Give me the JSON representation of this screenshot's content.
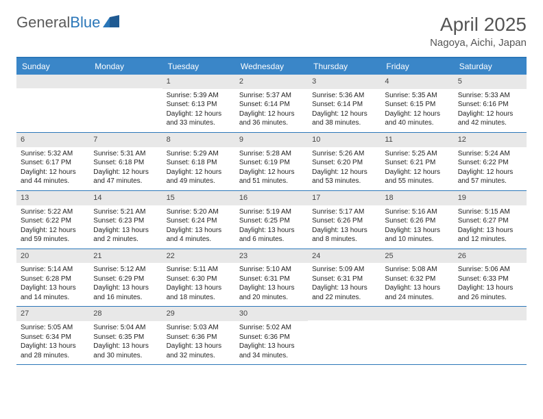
{
  "logo": {
    "text_gray": "General",
    "text_blue": "Blue"
  },
  "title": "April 2025",
  "subtitle": "Nagoya, Aichi, Japan",
  "colors": {
    "header_bar": "#3a86c8",
    "border": "#2a76b8",
    "daynum_bg": "#e8e8e8",
    "text": "#222222",
    "title_text": "#555555"
  },
  "weekdays": [
    "Sunday",
    "Monday",
    "Tuesday",
    "Wednesday",
    "Thursday",
    "Friday",
    "Saturday"
  ],
  "weeks": [
    [
      null,
      null,
      {
        "n": "1",
        "sr": "Sunrise: 5:39 AM",
        "ss": "Sunset: 6:13 PM",
        "d1": "Daylight: 12 hours",
        "d2": "and 33 minutes."
      },
      {
        "n": "2",
        "sr": "Sunrise: 5:37 AM",
        "ss": "Sunset: 6:14 PM",
        "d1": "Daylight: 12 hours",
        "d2": "and 36 minutes."
      },
      {
        "n": "3",
        "sr": "Sunrise: 5:36 AM",
        "ss": "Sunset: 6:14 PM",
        "d1": "Daylight: 12 hours",
        "d2": "and 38 minutes."
      },
      {
        "n": "4",
        "sr": "Sunrise: 5:35 AM",
        "ss": "Sunset: 6:15 PM",
        "d1": "Daylight: 12 hours",
        "d2": "and 40 minutes."
      },
      {
        "n": "5",
        "sr": "Sunrise: 5:33 AM",
        "ss": "Sunset: 6:16 PM",
        "d1": "Daylight: 12 hours",
        "d2": "and 42 minutes."
      }
    ],
    [
      {
        "n": "6",
        "sr": "Sunrise: 5:32 AM",
        "ss": "Sunset: 6:17 PM",
        "d1": "Daylight: 12 hours",
        "d2": "and 44 minutes."
      },
      {
        "n": "7",
        "sr": "Sunrise: 5:31 AM",
        "ss": "Sunset: 6:18 PM",
        "d1": "Daylight: 12 hours",
        "d2": "and 47 minutes."
      },
      {
        "n": "8",
        "sr": "Sunrise: 5:29 AM",
        "ss": "Sunset: 6:18 PM",
        "d1": "Daylight: 12 hours",
        "d2": "and 49 minutes."
      },
      {
        "n": "9",
        "sr": "Sunrise: 5:28 AM",
        "ss": "Sunset: 6:19 PM",
        "d1": "Daylight: 12 hours",
        "d2": "and 51 minutes."
      },
      {
        "n": "10",
        "sr": "Sunrise: 5:26 AM",
        "ss": "Sunset: 6:20 PM",
        "d1": "Daylight: 12 hours",
        "d2": "and 53 minutes."
      },
      {
        "n": "11",
        "sr": "Sunrise: 5:25 AM",
        "ss": "Sunset: 6:21 PM",
        "d1": "Daylight: 12 hours",
        "d2": "and 55 minutes."
      },
      {
        "n": "12",
        "sr": "Sunrise: 5:24 AM",
        "ss": "Sunset: 6:22 PM",
        "d1": "Daylight: 12 hours",
        "d2": "and 57 minutes."
      }
    ],
    [
      {
        "n": "13",
        "sr": "Sunrise: 5:22 AM",
        "ss": "Sunset: 6:22 PM",
        "d1": "Daylight: 12 hours",
        "d2": "and 59 minutes."
      },
      {
        "n": "14",
        "sr": "Sunrise: 5:21 AM",
        "ss": "Sunset: 6:23 PM",
        "d1": "Daylight: 13 hours",
        "d2": "and 2 minutes."
      },
      {
        "n": "15",
        "sr": "Sunrise: 5:20 AM",
        "ss": "Sunset: 6:24 PM",
        "d1": "Daylight: 13 hours",
        "d2": "and 4 minutes."
      },
      {
        "n": "16",
        "sr": "Sunrise: 5:19 AM",
        "ss": "Sunset: 6:25 PM",
        "d1": "Daylight: 13 hours",
        "d2": "and 6 minutes."
      },
      {
        "n": "17",
        "sr": "Sunrise: 5:17 AM",
        "ss": "Sunset: 6:26 PM",
        "d1": "Daylight: 13 hours",
        "d2": "and 8 minutes."
      },
      {
        "n": "18",
        "sr": "Sunrise: 5:16 AM",
        "ss": "Sunset: 6:26 PM",
        "d1": "Daylight: 13 hours",
        "d2": "and 10 minutes."
      },
      {
        "n": "19",
        "sr": "Sunrise: 5:15 AM",
        "ss": "Sunset: 6:27 PM",
        "d1": "Daylight: 13 hours",
        "d2": "and 12 minutes."
      }
    ],
    [
      {
        "n": "20",
        "sr": "Sunrise: 5:14 AM",
        "ss": "Sunset: 6:28 PM",
        "d1": "Daylight: 13 hours",
        "d2": "and 14 minutes."
      },
      {
        "n": "21",
        "sr": "Sunrise: 5:12 AM",
        "ss": "Sunset: 6:29 PM",
        "d1": "Daylight: 13 hours",
        "d2": "and 16 minutes."
      },
      {
        "n": "22",
        "sr": "Sunrise: 5:11 AM",
        "ss": "Sunset: 6:30 PM",
        "d1": "Daylight: 13 hours",
        "d2": "and 18 minutes."
      },
      {
        "n": "23",
        "sr": "Sunrise: 5:10 AM",
        "ss": "Sunset: 6:31 PM",
        "d1": "Daylight: 13 hours",
        "d2": "and 20 minutes."
      },
      {
        "n": "24",
        "sr": "Sunrise: 5:09 AM",
        "ss": "Sunset: 6:31 PM",
        "d1": "Daylight: 13 hours",
        "d2": "and 22 minutes."
      },
      {
        "n": "25",
        "sr": "Sunrise: 5:08 AM",
        "ss": "Sunset: 6:32 PM",
        "d1": "Daylight: 13 hours",
        "d2": "and 24 minutes."
      },
      {
        "n": "26",
        "sr": "Sunrise: 5:06 AM",
        "ss": "Sunset: 6:33 PM",
        "d1": "Daylight: 13 hours",
        "d2": "and 26 minutes."
      }
    ],
    [
      {
        "n": "27",
        "sr": "Sunrise: 5:05 AM",
        "ss": "Sunset: 6:34 PM",
        "d1": "Daylight: 13 hours",
        "d2": "and 28 minutes."
      },
      {
        "n": "28",
        "sr": "Sunrise: 5:04 AM",
        "ss": "Sunset: 6:35 PM",
        "d1": "Daylight: 13 hours",
        "d2": "and 30 minutes."
      },
      {
        "n": "29",
        "sr": "Sunrise: 5:03 AM",
        "ss": "Sunset: 6:36 PM",
        "d1": "Daylight: 13 hours",
        "d2": "and 32 minutes."
      },
      {
        "n": "30",
        "sr": "Sunrise: 5:02 AM",
        "ss": "Sunset: 6:36 PM",
        "d1": "Daylight: 13 hours",
        "d2": "and 34 minutes."
      },
      null,
      null,
      null
    ]
  ]
}
